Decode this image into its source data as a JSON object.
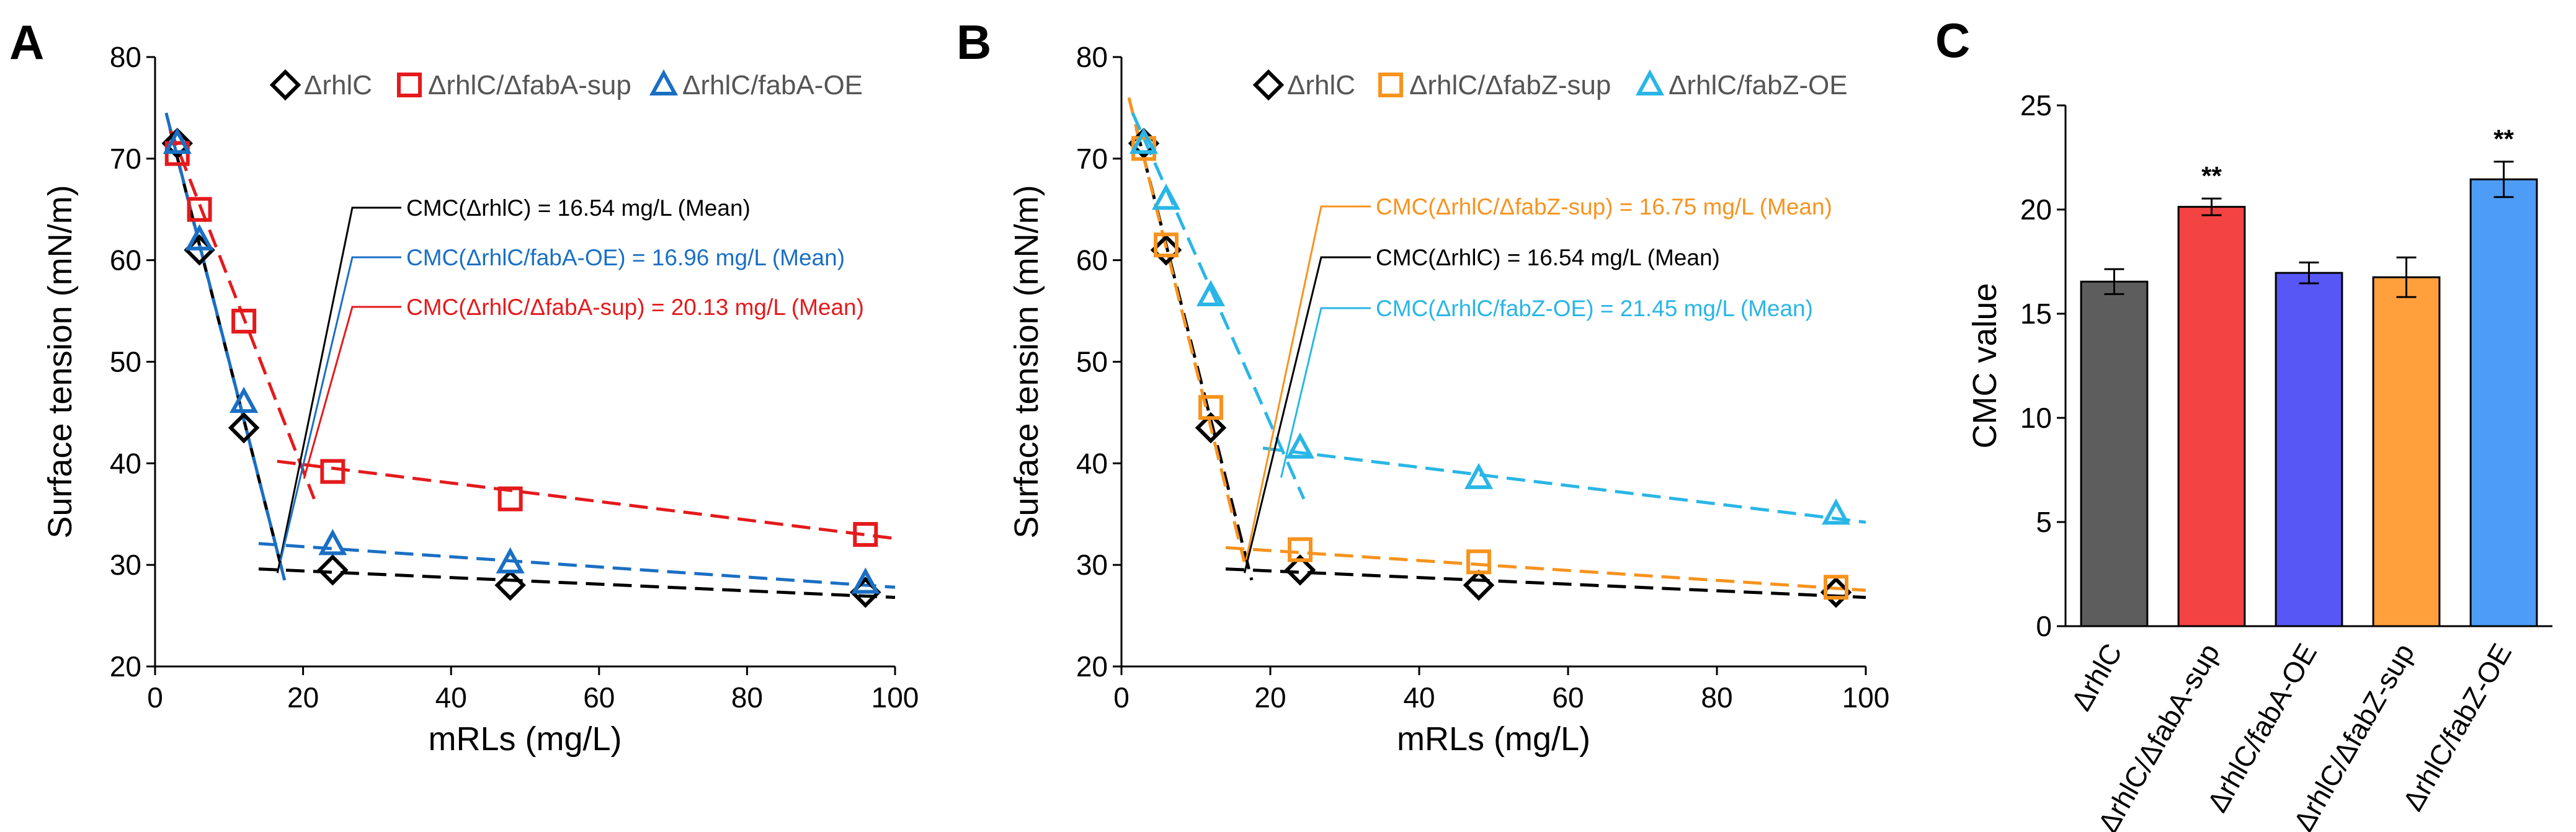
{
  "chart_data": [
    {
      "panel": "A",
      "type": "scatter",
      "xlabel": "mRLs (mg/L)",
      "ylabel": "Surface tension (mN/m)",
      "xlim": [
        0,
        100
      ],
      "ylim": [
        20,
        80
      ],
      "xticks": [
        0,
        20,
        40,
        60,
        80,
        100
      ],
      "yticks": [
        20,
        30,
        40,
        50,
        60,
        70,
        80
      ],
      "series": [
        {
          "name": "ΔrhlC",
          "marker": "diamond",
          "color": "#000000",
          "x": [
            3,
            6,
            12,
            24,
            48,
            96
          ],
          "y": [
            71.5,
            61,
            43.5,
            29.5,
            28,
            27.3
          ]
        },
        {
          "name": "ΔrhlC/ΔfabA-sup",
          "marker": "square",
          "color": "#e41a1c",
          "x": [
            3,
            6,
            12,
            24,
            48,
            96
          ],
          "y": [
            70.5,
            65,
            54,
            39.2,
            36.5,
            33
          ]
        },
        {
          "name": "ΔrhlC/fabA-OE",
          "marker": "triangle",
          "color": "#1a6fc4",
          "x": [
            3,
            6,
            12,
            24,
            48,
            96
          ],
          "y": [
            71.5,
            62,
            46,
            32,
            30.2,
            28.2
          ]
        }
      ],
      "fit_lines": [
        {
          "series": "ΔrhlC",
          "color": "#000000",
          "x": [
            2,
            17.5
          ],
          "y": [
            73,
            28.5
          ]
        },
        {
          "series": "ΔrhlC",
          "color": "#000000",
          "x": [
            14,
            100
          ],
          "y": [
            29.6,
            26.8
          ]
        },
        {
          "series": "ΔrhlC/ΔfabA-sup",
          "color": "#e41a1c",
          "x": [
            2,
            21.5
          ],
          "y": [
            73,
            36.5
          ]
        },
        {
          "series": "ΔrhlC/ΔfabA-sup",
          "color": "#e41a1c",
          "x": [
            16.5,
            100
          ],
          "y": [
            40.2,
            32.6
          ]
        },
        {
          "series": "ΔrhlC/fabA-OE",
          "color": "#1a6fc4",
          "x": [
            1.5,
            17.5
          ],
          "y": [
            74.5,
            28.5
          ]
        },
        {
          "series": "ΔrhlC/fabA-OE",
          "color": "#1a6fc4",
          "x": [
            14,
            100
          ],
          "y": [
            32.1,
            27.8
          ]
        }
      ],
      "annotations": [
        {
          "text": "CMC(ΔrhlC) = 16.54 mg/L (Mean)",
          "color": "#000000",
          "point_x": 16.54,
          "point_y": 29.2
        },
        {
          "text": "CMC(ΔrhlC/fabA-OE) = 16.96 mg/L (Mean)",
          "color": "#1a6fc4",
          "point_x": 16.96,
          "point_y": 30.4
        },
        {
          "text": "CMC(ΔrhlC/ΔfabA-sup) = 20.13 mg/L (Mean)",
          "color": "#e41a1c",
          "point_x": 20.13,
          "point_y": 38.5
        }
      ]
    },
    {
      "panel": "B",
      "type": "scatter",
      "xlabel": "mRLs (mg/L)",
      "ylabel": "Surface tension (mN/m)",
      "xlim": [
        0,
        100
      ],
      "ylim": [
        20,
        80
      ],
      "xticks": [
        0,
        20,
        40,
        60,
        80,
        100
      ],
      "yticks": [
        20,
        30,
        40,
        50,
        60,
        70,
        80
      ],
      "series": [
        {
          "name": "ΔrhlC",
          "marker": "diamond",
          "color": "#000000",
          "x": [
            3,
            6,
            12,
            24,
            48,
            96
          ],
          "y": [
            71.5,
            61,
            43.5,
            29.5,
            28,
            27.3
          ]
        },
        {
          "name": "ΔrhlC/ΔfabZ-sup",
          "marker": "square",
          "color": "#f7931e",
          "x": [
            3,
            6,
            12,
            24,
            48,
            96
          ],
          "y": [
            71,
            61.5,
            45.5,
            31.5,
            30.3,
            27.8
          ]
        },
        {
          "name": "ΔrhlC/fabZ-OE",
          "marker": "triangle",
          "color": "#29b6e6",
          "x": [
            3,
            6,
            12,
            24,
            48,
            96
          ],
          "y": [
            71.5,
            66,
            56.5,
            41.5,
            38.5,
            35
          ]
        }
      ],
      "fit_lines": [
        {
          "series": "ΔrhlC",
          "color": "#000000",
          "x": [
            2,
            17.5
          ],
          "y": [
            73,
            28.5
          ]
        },
        {
          "series": "ΔrhlC",
          "color": "#000000",
          "x": [
            14,
            100
          ],
          "y": [
            29.6,
            26.8
          ]
        },
        {
          "series": "ΔrhlC/ΔfabZ-sup",
          "color": "#f7931e",
          "x": [
            1,
            16.5
          ],
          "y": [
            76,
            30.3
          ]
        },
        {
          "series": "ΔrhlC/ΔfabZ-sup",
          "color": "#f7931e",
          "x": [
            14,
            100
          ],
          "y": [
            31.7,
            27.5
          ]
        },
        {
          "series": "ΔrhlC/fabZ-OE",
          "color": "#29b6e6",
          "x": [
            1.5,
            24.5
          ],
          "y": [
            74.5,
            36.5
          ]
        },
        {
          "series": "ΔrhlC/fabZ-OE",
          "color": "#29b6e6",
          "x": [
            19,
            100
          ],
          "y": [
            41.5,
            34.2
          ]
        }
      ],
      "annotations": [
        {
          "text": "CMC(ΔrhlC/ΔfabZ-sup) = 16.75 mg/L (Mean)",
          "color": "#f7931e",
          "point_x": 16.75,
          "point_y": 30.5
        },
        {
          "text": "CMC(ΔrhlC) = 16.54 mg/L (Mean)",
          "color": "#000000",
          "point_x": 16.54,
          "point_y": 29.2
        },
        {
          "text": "CMC(ΔrhlC/fabZ-OE) = 21.45 mg/L (Mean)",
          "color": "#29b6e6",
          "point_x": 21.45,
          "point_y": 38.6
        }
      ]
    },
    {
      "panel": "C",
      "type": "bar",
      "ylabel": "CMC value",
      "ylim": [
        0,
        25
      ],
      "yticks": [
        0,
        5,
        10,
        15,
        20,
        25
      ],
      "categories": [
        "ΔrhlC",
        "ΔrhlC/ΔfabA-sup",
        "ΔrhlC/fabA-OE",
        "ΔrhlC/ΔfabZ-sup",
        "ΔrhlC/fabZ-OE"
      ],
      "values": [
        16.54,
        20.13,
        16.96,
        16.75,
        21.45
      ],
      "errors": [
        0.6,
        0.4,
        0.5,
        0.95,
        0.85
      ],
      "colors": [
        "#5d5d5d",
        "#f44343",
        "#5757f5",
        "#ffa03c",
        "#4d9df7"
      ],
      "significance": [
        "",
        "**",
        "",
        "",
        "**"
      ]
    }
  ]
}
